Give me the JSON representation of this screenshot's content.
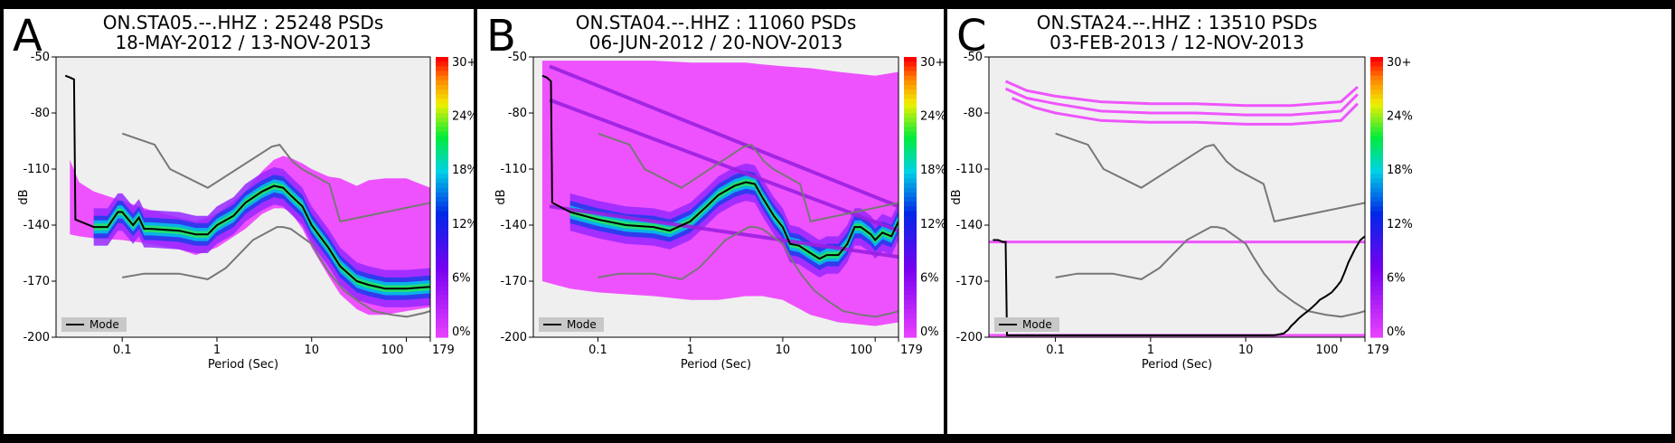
{
  "chart_data": [
    {
      "type": "heatmap",
      "panel_letter": "A",
      "title": "ON.STA05.--.HHZ : 25248 PSDs",
      "subtitle": "18-MAY-2012 / 13-NOV-2013",
      "xlabel": "Period (Sec)",
      "ylabel": "dB",
      "xscale": "log",
      "xlim": [
        0.02,
        179
      ],
      "ylim": [
        -200,
        -50
      ],
      "xticks": [
        {
          "v": 0.1,
          "label": "0.1"
        },
        {
          "v": 1,
          "label": "1"
        },
        {
          "v": 10,
          "label": "10"
        },
        {
          "v": 100,
          "label": "100"
        },
        {
          "v": 179,
          "label": "179"
        }
      ],
      "yticks": [
        -50,
        -80,
        -110,
        -140,
        -170,
        -200
      ],
      "colorbar": {
        "labels": [
          "0%",
          "6%",
          "12%",
          "18%",
          "24%",
          "30+"
        ]
      },
      "legend": {
        "entry": "Mode",
        "placement": "bottom-left"
      },
      "background_color": "#efefef",
      "band_color": "#ee44ff",
      "mode_color": "#000000",
      "nlnm": {
        "x": [
          0.1,
          0.17,
          0.4,
          0.8,
          1.24,
          2.4,
          4.3,
          5,
          6,
          10,
          12,
          15.6,
          21.9,
          31.6,
          45,
          70,
          101,
          154,
          179
        ],
        "y": [
          -168,
          -166,
          -166,
          -169,
          -163,
          -148,
          -141,
          -141,
          -142,
          -150,
          -157,
          -166,
          -175,
          -181,
          -186,
          -188,
          -189,
          -187,
          -186
        ]
      },
      "nhnm": {
        "x": [
          0.1,
          0.22,
          0.32,
          0.8,
          3.8,
          4.6,
          6.3,
          7.9,
          15.4,
          20,
          354
        ],
        "y": [
          -91,
          -97,
          -110,
          -120,
          -98,
          -97,
          -106,
          -110,
          -118,
          -138,
          -125
        ]
      },
      "band": {
        "x": [
          0.028,
          0.035,
          0.05,
          0.1,
          0.2,
          0.4,
          0.6,
          1,
          2,
          3,
          4,
          5,
          6,
          8,
          10,
          15,
          20,
          30,
          40,
          60,
          100,
          179
        ],
        "lo": [
          -145,
          -146,
          -147,
          -148,
          -150,
          -153,
          -156,
          -152,
          -142,
          -134,
          -131,
          -131,
          -133,
          -142,
          -152,
          -167,
          -177,
          -185,
          -188,
          -188,
          -186,
          -184
        ],
        "hi": [
          -105,
          -117,
          -122,
          -127,
          -132,
          -136,
          -138,
          -134,
          -122,
          -111,
          -105,
          -103,
          -104,
          -107,
          -110,
          -114,
          -115,
          -119,
          -116,
          -115,
          -115,
          -120
        ]
      },
      "mode": {
        "x": [
          0.025,
          0.028,
          0.031,
          0.032,
          0.05,
          0.07,
          0.09,
          0.1,
          0.13,
          0.15,
          0.17,
          0.2,
          0.4,
          0.6,
          0.8,
          1,
          1.5,
          2,
          3,
          4,
          5,
          6,
          8,
          10,
          15,
          20,
          30,
          40,
          60,
          100,
          179
        ],
        "y": [
          -60,
          -61,
          -62,
          -137,
          -141,
          -141,
          -133,
          -133,
          -140,
          -136,
          -142,
          -142,
          -143,
          -145,
          -145,
          -140,
          -135,
          -128,
          -122,
          -119,
          -120,
          -124,
          -130,
          -140,
          -152,
          -162,
          -170,
          -172,
          -174,
          -174,
          -173
        ]
      }
    },
    {
      "type": "heatmap",
      "panel_letter": "B",
      "title": "ON.STA04.--.HHZ : 11060 PSDs",
      "subtitle": "06-JUN-2012 / 20-NOV-2013",
      "xlabel": "Period (Sec)",
      "ylabel": "dB",
      "xscale": "log",
      "xlim": [
        0.02,
        179
      ],
      "ylim": [
        -200,
        -50
      ],
      "xticks": [
        {
          "v": 0.1,
          "label": "0.1"
        },
        {
          "v": 1,
          "label": "1"
        },
        {
          "v": 10,
          "label": "10"
        },
        {
          "v": 100,
          "label": "100"
        },
        {
          "v": 179,
          "label": "179"
        }
      ],
      "yticks": [
        -50,
        -80,
        -110,
        -140,
        -170,
        -200
      ],
      "colorbar": {
        "labels": [
          "0%",
          "6%",
          "12%",
          "18%",
          "24%",
          "30+"
        ]
      },
      "legend": {
        "entry": "Mode",
        "placement": "bottom-left"
      },
      "background_color": "#efefef",
      "band_color": "#ee44ff",
      "mode_color": "#000000",
      "nlnm": {
        "x": [
          0.1,
          0.17,
          0.4,
          0.8,
          1.24,
          2.4,
          4.3,
          5,
          6,
          10,
          12,
          15.6,
          21.9,
          31.6,
          45,
          70,
          101,
          154,
          179
        ],
        "y": [
          -168,
          -166,
          -166,
          -169,
          -163,
          -148,
          -141,
          -141,
          -142,
          -150,
          -157,
          -166,
          -175,
          -181,
          -186,
          -188,
          -189,
          -187,
          -186
        ]
      },
      "nhnm": {
        "x": [
          0.1,
          0.22,
          0.32,
          0.8,
          3.8,
          4.6,
          6.3,
          7.9,
          15.4,
          20,
          354
        ],
        "y": [
          -91,
          -97,
          -110,
          -120,
          -98,
          -97,
          -106,
          -110,
          -118,
          -138,
          -125
        ]
      },
      "band": {
        "x": [
          0.025,
          0.035,
          0.05,
          0.1,
          0.2,
          0.4,
          1,
          2,
          4,
          6,
          10,
          20,
          40,
          100,
          179
        ],
        "lo": [
          -170,
          -172,
          -174,
          -176,
          -177,
          -178,
          -180,
          -180,
          -178,
          -178,
          -180,
          -188,
          -192,
          -194,
          -192
        ],
        "hi": [
          -52,
          -52,
          -52,
          -52,
          -52,
          -52,
          -53,
          -53,
          -53,
          -54,
          -55,
          -56,
          -58,
          -60,
          -58
        ]
      },
      "lines": [
        {
          "x": [
            0.03,
            179
          ],
          "y": [
            -55,
            -130
          ]
        },
        {
          "x": [
            0.03,
            179
          ],
          "y": [
            -73,
            -143
          ]
        },
        {
          "x": [
            0.03,
            179
          ],
          "y": [
            -130,
            -157
          ]
        }
      ],
      "mode": {
        "x": [
          0.025,
          0.028,
          0.031,
          0.032,
          0.05,
          0.1,
          0.2,
          0.4,
          0.6,
          1,
          1.5,
          2,
          3,
          4,
          5,
          6,
          8,
          10,
          12,
          15,
          20,
          25,
          30,
          40,
          50,
          60,
          70,
          90,
          100,
          120,
          150,
          179
        ],
        "y": [
          -60,
          -61,
          -63,
          -128,
          -133,
          -137,
          -140,
          -141,
          -143,
          -138,
          -130,
          -124,
          -119,
          -117,
          -118,
          -125,
          -135,
          -141,
          -150,
          -151,
          -155,
          -158,
          -156,
          -156,
          -150,
          -141,
          -141,
          -145,
          -148,
          -144,
          -146,
          -138
        ]
      }
    },
    {
      "type": "heatmap",
      "panel_letter": "C",
      "title": "ON.STA24.--.HHZ : 13510 PSDs",
      "subtitle": "03-FEB-2013 / 12-NOV-2013",
      "xlabel": "Period (Sec)",
      "ylabel": "dB",
      "xscale": "log",
      "xlim": [
        0.02,
        179
      ],
      "ylim": [
        -200,
        -50
      ],
      "xticks": [
        {
          "v": 0.1,
          "label": "0.1"
        },
        {
          "v": 1,
          "label": "1"
        },
        {
          "v": 10,
          "label": "10"
        },
        {
          "v": 100,
          "label": "100"
        },
        {
          "v": 179,
          "label": "179"
        }
      ],
      "yticks": [
        -50,
        -80,
        -110,
        -140,
        -170,
        -200
      ],
      "colorbar": {
        "labels": [
          "0%",
          "6%",
          "12%",
          "18%",
          "24%",
          "30+"
        ]
      },
      "legend": {
        "entry": "Mode",
        "placement": "bottom-left"
      },
      "background_color": "#efefef",
      "band_color": "#ee44ff",
      "mode_color": "#000000",
      "nlnm": {
        "x": [
          0.1,
          0.17,
          0.4,
          0.8,
          1.24,
          2.4,
          4.3,
          5,
          6,
          10,
          12,
          15.6,
          21.9,
          31.6,
          45,
          70,
          101,
          154,
          179
        ],
        "y": [
          -168,
          -166,
          -166,
          -169,
          -163,
          -148,
          -141,
          -141,
          -142,
          -150,
          -157,
          -166,
          -175,
          -181,
          -186,
          -188,
          -189,
          -187,
          -186
        ]
      },
      "nhnm": {
        "x": [
          0.1,
          0.22,
          0.32,
          0.8,
          3.8,
          4.6,
          6.3,
          7.9,
          15.4,
          20,
          354
        ],
        "y": [
          -91,
          -97,
          -110,
          -120,
          -98,
          -97,
          -106,
          -110,
          -118,
          -138,
          -125
        ]
      },
      "lines": [
        {
          "x": [
            0.03,
            0.05,
            0.1,
            0.3,
            1,
            3,
            10,
            30,
            100,
            150
          ],
          "y": [
            -63,
            -68,
            -71,
            -74,
            -75,
            -75,
            -76,
            -76,
            -74,
            -66
          ]
        },
        {
          "x": [
            0.03,
            0.05,
            0.1,
            0.3,
            1,
            3,
            10,
            30,
            100,
            150
          ],
          "y": [
            -67,
            -72,
            -75,
            -79,
            -80,
            -80,
            -81,
            -81,
            -79,
            -70
          ]
        },
        {
          "x": [
            0.035,
            0.06,
            0.1,
            0.3,
            1,
            3,
            10,
            30,
            100,
            150
          ],
          "y": [
            -72,
            -77,
            -80,
            -84,
            -85,
            -85,
            -86,
            -86,
            -84,
            -75
          ]
        },
        {
          "x": [
            0.02,
            179
          ],
          "y": [
            -149,
            -149
          ]
        },
        {
          "x": [
            0.02,
            179
          ],
          "y": [
            -199,
            -199
          ]
        }
      ],
      "mode": {
        "x": [
          0.022,
          0.025,
          0.028,
          0.03,
          0.031,
          0.05,
          0.1,
          1,
          10,
          20,
          25,
          28,
          30,
          33,
          36,
          40,
          45,
          50,
          55,
          60,
          70,
          80,
          90,
          100,
          110,
          120,
          140,
          160,
          179
        ],
        "y": [
          -148,
          -148,
          -149,
          -149,
          -199,
          -199,
          -199,
          -199,
          -199,
          -199,
          -198,
          -196,
          -194,
          -192,
          -190,
          -188,
          -186,
          -184,
          -182,
          -180,
          -178,
          -176,
          -173,
          -170,
          -165,
          -160,
          -153,
          -148,
          -146
        ]
      }
    }
  ]
}
